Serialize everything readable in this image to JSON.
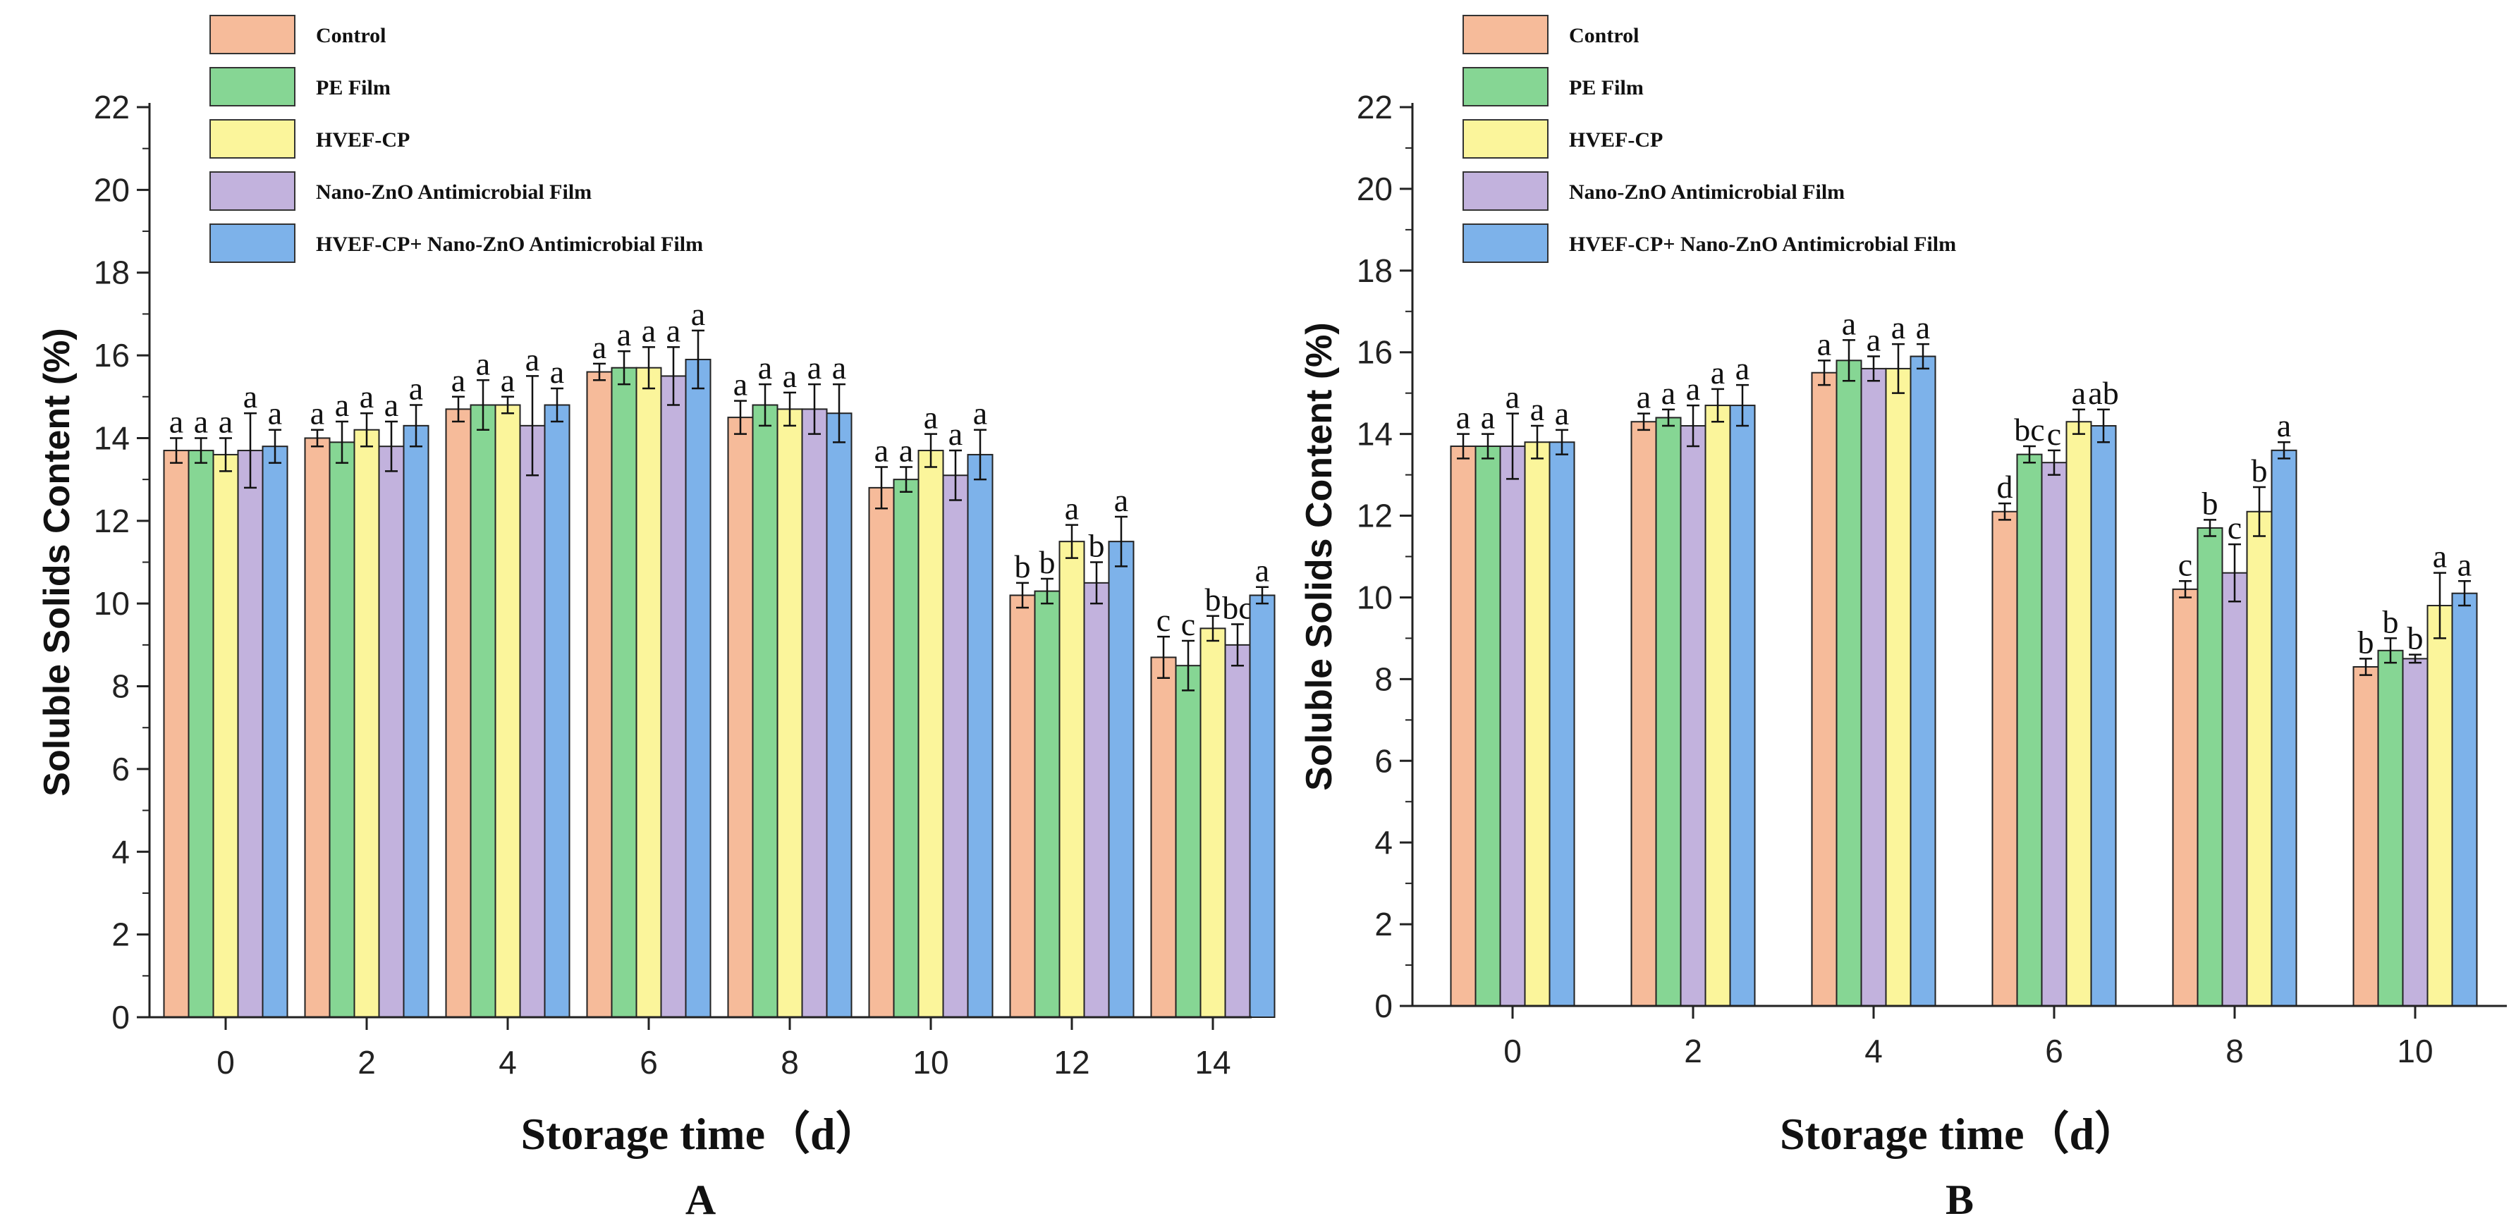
{
  "colors": {
    "control": "#f6bb9a",
    "pe_film": "#86d694",
    "hvef_cp": "#fbf59b",
    "nano_zno": "#c2b2dd",
    "combo": "#7db2ea"
  },
  "chart_data": [
    {
      "type": "bar",
      "panel_label": "A",
      "xlabel": "Storage time（d）",
      "ylabel": "Soluble Solids Content (%)",
      "ylim": [
        0,
        22
      ],
      "yticks": [
        0,
        2,
        4,
        6,
        8,
        10,
        12,
        14,
        16,
        18,
        20,
        22
      ],
      "categories": [
        "0",
        "2",
        "4",
        "6",
        "8",
        "10",
        "12",
        "14"
      ],
      "legend": [
        "Control",
        "PE Film",
        "HVEF-CP",
        "Nano-ZnO Antimicrobial Film",
        "HVEF-CP+ Nano-ZnO Antimicrobial Film"
      ],
      "series": [
        {
          "name": "Control",
          "color_key": "control",
          "values": [
            13.7,
            14.0,
            14.7,
            15.6,
            14.5,
            12.8,
            10.2,
            8.7
          ],
          "errors": [
            0.3,
            0.2,
            0.3,
            0.2,
            0.4,
            0.5,
            0.3,
            0.5
          ],
          "labels": [
            "a",
            "a",
            "a",
            "a",
            "a",
            "a",
            "b",
            "c"
          ]
        },
        {
          "name": "PE Film",
          "color_key": "pe_film",
          "values": [
            13.7,
            13.9,
            14.8,
            15.7,
            14.8,
            13.0,
            10.3,
            8.5
          ],
          "errors": [
            0.3,
            0.5,
            0.6,
            0.4,
            0.5,
            0.3,
            0.3,
            0.6
          ],
          "labels": [
            "a",
            "a",
            "a",
            "a",
            "a",
            "a",
            "b",
            "c"
          ]
        },
        {
          "name": "HVEF-CP",
          "color_key": "hvef_cp",
          "values": [
            13.6,
            14.2,
            14.8,
            15.7,
            14.7,
            13.7,
            11.5,
            9.4
          ],
          "errors": [
            0.4,
            0.4,
            0.2,
            0.5,
            0.4,
            0.4,
            0.4,
            0.3
          ],
          "labels": [
            "a",
            "a",
            "a",
            "a",
            "a",
            "a",
            "a",
            "b"
          ]
        },
        {
          "name": "Nano-ZnO Antimicrobial Film",
          "color_key": "nano_zno",
          "values": [
            13.7,
            13.8,
            14.3,
            15.5,
            14.7,
            13.1,
            10.5,
            9.0
          ],
          "errors": [
            0.9,
            0.6,
            1.2,
            0.7,
            0.6,
            0.6,
            0.5,
            0.5
          ],
          "labels": [
            "a",
            "a",
            "a",
            "a",
            "a",
            "a",
            "b",
            "bc"
          ]
        },
        {
          "name": "HVEF-CP+ Nano-ZnO Antimicrobial Film",
          "color_key": "combo",
          "values": [
            13.8,
            14.3,
            14.8,
            15.9,
            14.6,
            13.6,
            11.5,
            10.2
          ],
          "errors": [
            0.4,
            0.5,
            0.4,
            0.7,
            0.7,
            0.6,
            0.6,
            0.2
          ],
          "labels": [
            "a",
            "a",
            "a",
            "a",
            "a",
            "a",
            "a",
            "a"
          ]
        }
      ]
    },
    {
      "type": "bar",
      "panel_label": "B",
      "xlabel": "Storage time（d）",
      "ylabel": "Soluble Solids Content (%)",
      "ylim": [
        0,
        22
      ],
      "yticks": [
        0,
        2,
        4,
        6,
        8,
        10,
        12,
        14,
        16,
        18,
        20,
        22
      ],
      "categories": [
        "0",
        "2",
        "4",
        "6",
        "8",
        "10"
      ],
      "legend": [
        "Control",
        "PE Film",
        "HVEF-CP",
        "Nano-ZnO Antimicrobial Film",
        "HVEF-CP+ Nano-ZnO Antimicrobial Film"
      ],
      "series": [
        {
          "name": "Control",
          "color_key": "control",
          "values": [
            13.7,
            14.3,
            15.5,
            12.1,
            10.2,
            8.3
          ],
          "errors": [
            0.3,
            0.2,
            0.3,
            0.2,
            0.2,
            0.2
          ],
          "labels": [
            "a",
            "a",
            "a",
            "d",
            "c",
            "b"
          ]
        },
        {
          "name": "PE Film",
          "color_key": "pe_film",
          "values": [
            13.7,
            14.4,
            15.8,
            13.5,
            11.7,
            8.7
          ],
          "errors": [
            0.3,
            0.2,
            0.5,
            0.2,
            0.2,
            0.3
          ],
          "labels": [
            "a",
            "a",
            "a",
            "bc",
            "b",
            "b"
          ]
        },
        {
          "name": "Nano-ZnO Antimicrobial Film",
          "color_key": "nano_zno",
          "values": [
            13.7,
            14.2,
            15.6,
            13.3,
            10.6,
            8.5
          ],
          "errors": [
            0.8,
            0.5,
            0.3,
            0.3,
            0.7,
            0.1
          ],
          "labels": [
            "a",
            "a",
            "a",
            "c",
            "c",
            "b"
          ]
        },
        {
          "name": "HVEF-CP",
          "color_key": "hvef_cp",
          "values": [
            13.8,
            14.7,
            15.6,
            14.3,
            12.1,
            9.8
          ],
          "errors": [
            0.4,
            0.4,
            0.6,
            0.3,
            0.6,
            0.8
          ],
          "labels": [
            "a",
            "a",
            "a",
            "a",
            "b",
            "a"
          ]
        },
        {
          "name": "HVEF-CP+ Nano-ZnO Antimicrobial Film",
          "color_key": "combo",
          "values": [
            13.8,
            14.7,
            15.9,
            14.2,
            13.6,
            10.1
          ],
          "errors": [
            0.3,
            0.5,
            0.3,
            0.4,
            0.2,
            0.3
          ],
          "labels": [
            "a",
            "a",
            "a",
            "ab",
            "a",
            "a"
          ]
        }
      ]
    }
  ]
}
